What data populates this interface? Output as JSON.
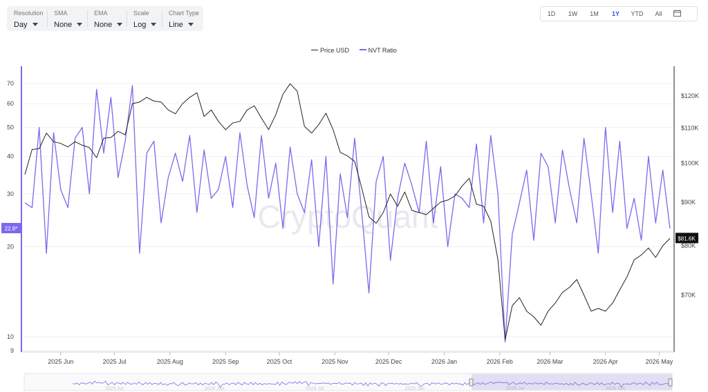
{
  "controls": [
    {
      "label": "Resolution",
      "value": "Day"
    },
    {
      "label": "SMA",
      "value": "None"
    },
    {
      "label": "EMA",
      "value": "None"
    },
    {
      "label": "Scale",
      "value": "Log"
    },
    {
      "label": "Chart Type",
      "value": "Line"
    }
  ],
  "ranges": [
    "1D",
    "1W",
    "1M",
    "1Y",
    "YTD",
    "All"
  ],
  "active_range": "1Y",
  "watermark": "CryptoQuant",
  "navigator_labels": [
    "2023 Jul",
    "2024 Jan",
    "2024 Jul",
    "2025 Jan",
    "2025 Jul",
    "2026 Jan"
  ],
  "chart_data": {
    "type": "line",
    "legend": [
      {
        "name": "Price USD",
        "color": "#222222"
      },
      {
        "name": "NVT Ratio",
        "color": "#7b68ee"
      }
    ],
    "x_tick_labels": [
      "2025 Jun",
      "2025 Jul",
      "2025 Aug",
      "2025 Sep",
      "2025 Oct",
      "2025 Nov",
      "2025 Dec",
      "2026 Jan",
      "2026 Feb",
      "2026 Mar",
      "2026 Apr",
      "2026 May"
    ],
    "left_axis": {
      "scale": "log",
      "ticks": [
        "70",
        "60",
        "50",
        "40",
        "30",
        "20",
        "10",
        "9"
      ],
      "tick_values": [
        70,
        60,
        50,
        40,
        30,
        20,
        10,
        9
      ],
      "range": [
        8.9,
        80
      ],
      "current_label": "22.8*"
    },
    "right_axis": {
      "scale": "log",
      "ticks": [
        "$120K",
        "$110K",
        "$100K",
        "$90K",
        "$80K",
        "$70K"
      ],
      "tick_values": [
        120000,
        110000,
        100000,
        90000,
        80000,
        70000
      ],
      "range": [
        60000,
        130000
      ],
      "current_label": "$81.6K"
    },
    "series": [
      {
        "name": "NVT Ratio",
        "axis": "left",
        "color": "#7b68ee",
        "x": [
          "2025-05-12",
          "2025-05-16",
          "2025-05-20",
          "2025-05-24",
          "2025-05-28",
          "2025-06-01",
          "2025-06-05",
          "2025-06-09",
          "2025-06-13",
          "2025-06-17",
          "2025-06-21",
          "2025-06-25",
          "2025-06-29",
          "2025-07-03",
          "2025-07-07",
          "2025-07-11",
          "2025-07-15",
          "2025-07-19",
          "2025-07-23",
          "2025-07-27",
          "2025-07-31",
          "2025-08-04",
          "2025-08-08",
          "2025-08-12",
          "2025-08-16",
          "2025-08-20",
          "2025-08-24",
          "2025-08-28",
          "2025-09-01",
          "2025-09-05",
          "2025-09-09",
          "2025-09-13",
          "2025-09-17",
          "2025-09-21",
          "2025-09-25",
          "2025-09-29",
          "2025-10-03",
          "2025-10-07",
          "2025-10-11",
          "2025-10-15",
          "2025-10-19",
          "2025-10-23",
          "2025-10-27",
          "2025-10-31",
          "2025-11-04",
          "2025-11-08",
          "2025-11-12",
          "2025-11-16",
          "2025-11-20",
          "2025-11-24",
          "2025-11-28",
          "2025-12-02",
          "2025-12-06",
          "2025-12-10",
          "2025-12-14",
          "2025-12-18",
          "2025-12-22",
          "2025-12-26",
          "2025-12-30",
          "2026-01-03",
          "2026-01-07",
          "2026-01-11",
          "2026-01-15",
          "2026-01-19",
          "2026-01-23",
          "2026-01-27",
          "2026-01-31",
          "2026-02-04",
          "2026-02-08",
          "2026-02-12",
          "2026-02-16",
          "2026-02-20",
          "2026-02-24",
          "2026-02-28",
          "2026-03-04",
          "2026-03-08",
          "2026-03-12",
          "2026-03-16",
          "2026-03-20",
          "2026-03-24",
          "2026-03-28",
          "2026-04-01",
          "2026-04-05",
          "2026-04-09",
          "2026-04-13",
          "2026-04-17",
          "2026-04-21",
          "2026-04-25",
          "2026-04-29",
          "2026-05-03",
          "2026-05-07"
        ],
        "values": [
          28,
          27,
          50,
          19,
          48,
          31,
          27,
          46,
          50,
          30,
          67,
          41,
          63,
          34,
          45,
          69,
          19,
          41,
          45,
          24,
          34,
          41,
          33,
          47,
          26,
          42,
          29,
          31,
          40,
          27,
          48,
          32,
          25,
          47,
          29,
          38,
          23,
          43,
          30,
          26,
          39,
          20,
          40,
          15,
          35,
          25,
          46,
          26,
          14,
          33,
          40,
          18,
          29,
          38,
          32,
          26,
          45,
          24,
          37,
          20,
          30,
          29,
          27,
          44,
          24,
          47,
          30,
          9.6,
          22,
          28,
          36,
          21,
          41,
          37,
          24,
          42,
          31,
          24,
          46,
          30,
          19,
          50,
          26,
          45,
          23,
          29,
          21,
          40,
          24,
          36,
          23
        ]
      },
      {
        "name": "Price USD",
        "axis": "right",
        "color": "#222222",
        "x": [
          "2025-05-12",
          "2025-05-16",
          "2025-05-20",
          "2025-05-24",
          "2025-05-28",
          "2025-06-01",
          "2025-06-05",
          "2025-06-09",
          "2025-06-13",
          "2025-06-17",
          "2025-06-21",
          "2025-06-25",
          "2025-06-29",
          "2025-07-03",
          "2025-07-07",
          "2025-07-11",
          "2025-07-15",
          "2025-07-19",
          "2025-07-23",
          "2025-07-27",
          "2025-07-31",
          "2025-08-04",
          "2025-08-08",
          "2025-08-12",
          "2025-08-16",
          "2025-08-20",
          "2025-08-24",
          "2025-08-28",
          "2025-09-01",
          "2025-09-05",
          "2025-09-09",
          "2025-09-13",
          "2025-09-17",
          "2025-09-21",
          "2025-09-25",
          "2025-09-29",
          "2025-10-03",
          "2025-10-07",
          "2025-10-11",
          "2025-10-15",
          "2025-10-19",
          "2025-10-23",
          "2025-10-27",
          "2025-10-31",
          "2025-11-04",
          "2025-11-08",
          "2025-11-12",
          "2025-11-16",
          "2025-11-20",
          "2025-11-24",
          "2025-11-28",
          "2025-12-02",
          "2025-12-06",
          "2025-12-10",
          "2025-12-14",
          "2025-12-18",
          "2025-12-22",
          "2025-12-26",
          "2025-12-30",
          "2026-01-03",
          "2026-01-07",
          "2026-01-11",
          "2026-01-15",
          "2026-01-19",
          "2026-01-23",
          "2026-01-27",
          "2026-01-31",
          "2026-02-04",
          "2026-02-08",
          "2026-02-12",
          "2026-02-16",
          "2026-02-20",
          "2026-02-24",
          "2026-02-28",
          "2026-03-04",
          "2026-03-08",
          "2026-03-12",
          "2026-03-16",
          "2026-03-20",
          "2026-03-24",
          "2026-03-28",
          "2026-04-01",
          "2026-04-05",
          "2026-04-09",
          "2026-04-13",
          "2026-04-17",
          "2026-04-21",
          "2026-04-25",
          "2026-04-29",
          "2026-05-03",
          "2026-05-07"
        ],
        "values": [
          97000,
          103800,
          104000,
          108500,
          106000,
          105500,
          104500,
          106000,
          105000,
          104300,
          101500,
          107000,
          107200,
          109000,
          108000,
          117500,
          118000,
          119500,
          118300,
          118000,
          115500,
          114300,
          117500,
          119500,
          121000,
          113500,
          115500,
          112000,
          109500,
          111500,
          112000,
          115500,
          116800,
          113000,
          109500,
          114000,
          120500,
          124000,
          121500,
          110500,
          108500,
          111000,
          114500,
          109500,
          103000,
          102000,
          100500,
          93500,
          86500,
          85000,
          87500,
          92000,
          89000,
          92500,
          88000,
          87500,
          87000,
          88500,
          90000,
          90500,
          91500,
          94000,
          96000,
          89500,
          89000,
          85500,
          77000,
          62000,
          68000,
          69500,
          67000,
          66000,
          64500,
          67000,
          68500,
          70500,
          71500,
          73000,
          70000,
          67000,
          67500,
          67000,
          68500,
          71000,
          73500,
          77000,
          78000,
          79500,
          77500,
          80000,
          81600
        ]
      }
    ]
  }
}
